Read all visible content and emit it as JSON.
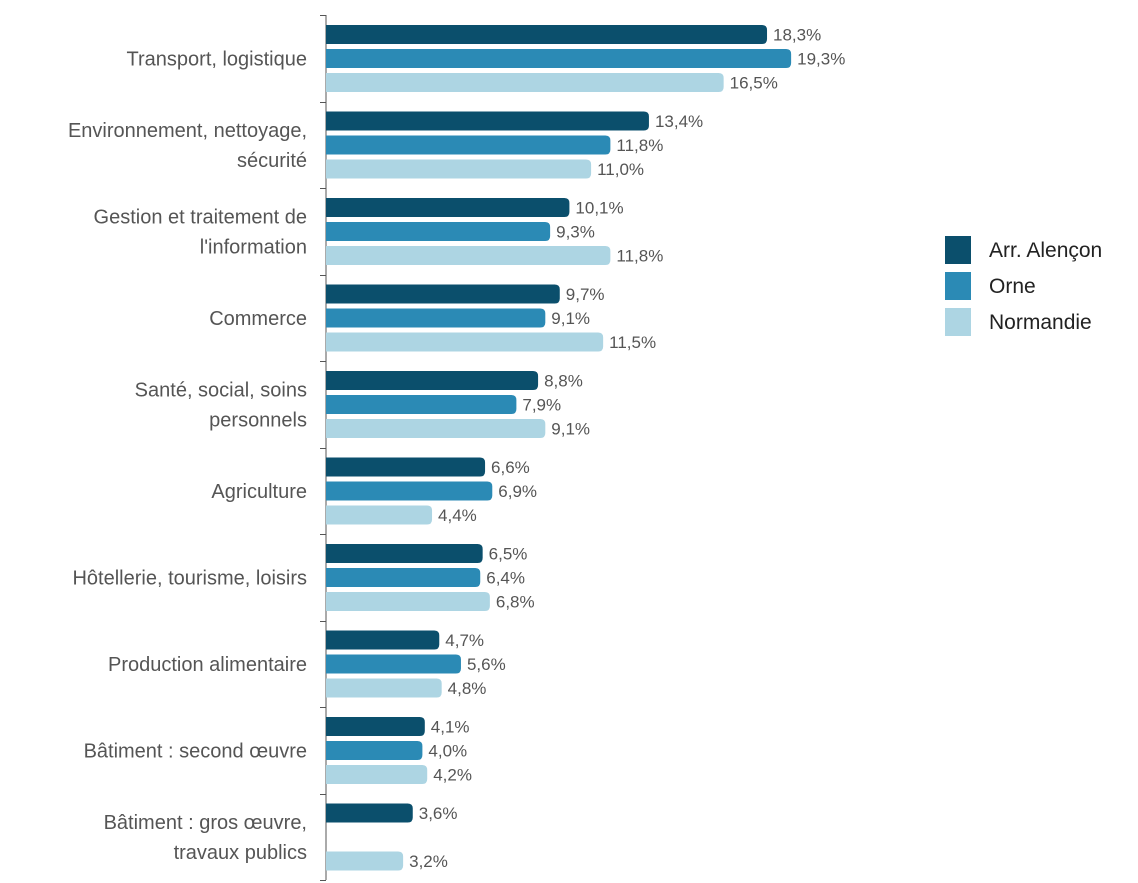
{
  "chart_data": {
    "type": "bar",
    "orientation": "horizontal",
    "categories": [
      [
        "Transport, logistique"
      ],
      [
        "Environnement, nettoyage,",
        "sécurité"
      ],
      [
        "Gestion et traitement de",
        "l'information"
      ],
      [
        "Commerce"
      ],
      [
        "Santé, social, soins",
        "personnels"
      ],
      [
        "Agriculture"
      ],
      [
        "Hôtellerie, tourisme, loisirs"
      ],
      [
        "Production alimentaire"
      ],
      [
        "Bâtiment : second œuvre"
      ],
      [
        "Bâtiment : gros œuvre,",
        "travaux publics"
      ]
    ],
    "series": [
      {
        "name": "Arr. Alençon",
        "color": "#0b4f6c",
        "values": [
          18.3,
          13.4,
          10.1,
          9.7,
          8.8,
          6.6,
          6.5,
          4.7,
          4.1,
          3.6
        ],
        "labels": [
          "18,3%",
          "13,4%",
          "10,1%",
          "9,7%",
          "8,8%",
          "6,6%",
          "6,5%",
          "4,7%",
          "4,1%",
          "3,6%"
        ]
      },
      {
        "name": "Orne",
        "color": "#2b8ab5",
        "values": [
          19.3,
          11.8,
          9.3,
          9.1,
          7.9,
          6.9,
          6.4,
          5.6,
          4.0,
          null
        ],
        "labels": [
          "19,3%",
          "11,8%",
          "9,3%",
          "9,1%",
          "7,9%",
          "6,9%",
          "6,4%",
          "5,6%",
          "4,0%",
          null
        ]
      },
      {
        "name": "Normandie",
        "color": "#add5e3",
        "values": [
          16.5,
          11.0,
          11.8,
          11.5,
          9.1,
          4.4,
          6.8,
          4.8,
          4.2,
          3.2
        ],
        "labels": [
          "16,5%",
          "11,0%",
          "11,8%",
          "11,5%",
          "9,1%",
          "4,4%",
          "6,8%",
          "4,8%",
          "4,2%",
          "3,2%"
        ]
      }
    ],
    "xlim": [
      0,
      20
    ],
    "grid": false,
    "legend_position": "right"
  }
}
